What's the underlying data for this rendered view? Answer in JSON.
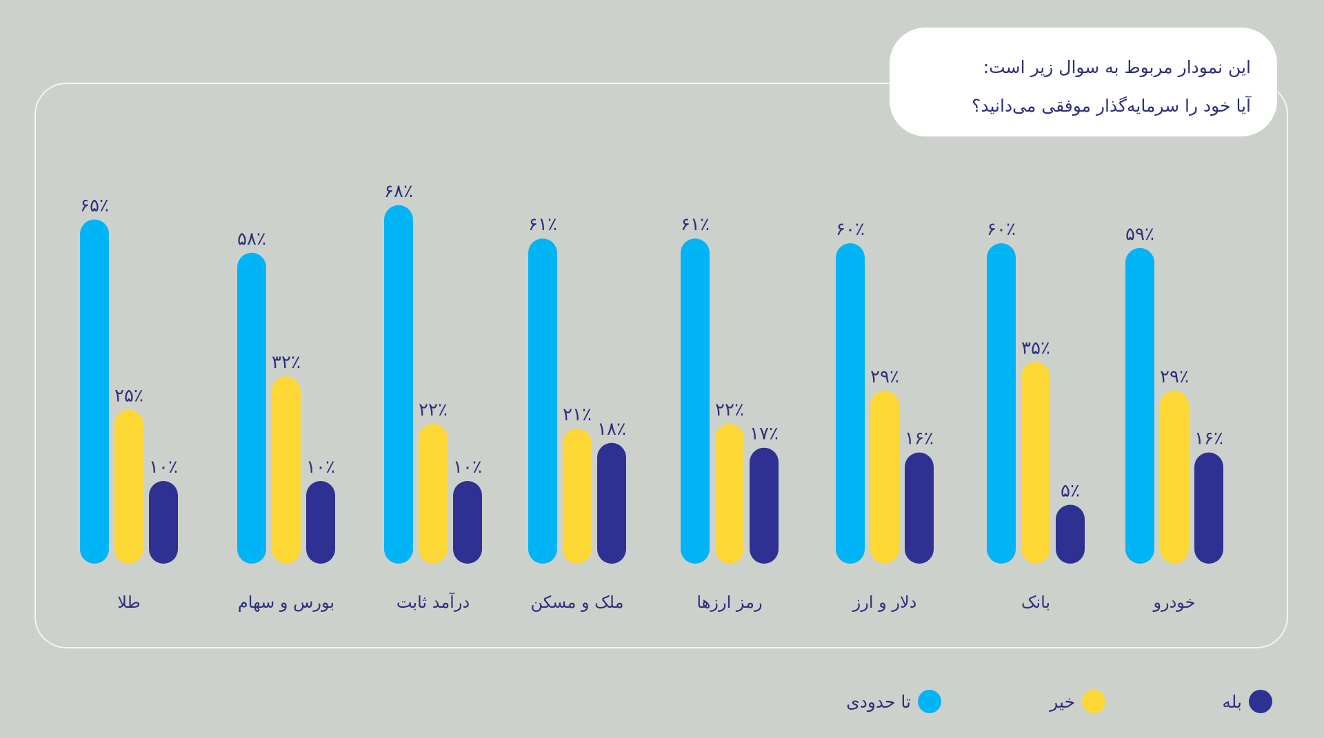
{
  "colors": {
    "background": "#cdd1cc",
    "tahododi": "#00b4f5",
    "kheir": "#fdd835",
    "baleh": "#2e3192",
    "text": "#2e2f7a"
  },
  "title": {
    "line1": "این نمودار مربوط به سوال زیر است:",
    "line2": "آیا خود را سرمایه‌گذار موفقی می‌دانید؟"
  },
  "chart_data": {
    "type": "bar",
    "title": "آیا خود را سرمایه‌گذار موفقی می‌دانید؟",
    "categories": [
      "طلا",
      "بورس و سهام",
      "درآمد ثابت",
      "ملک و مسکن",
      "رمز ارزها",
      "دلار و ارز",
      "بانک",
      "خودرو"
    ],
    "series": [
      {
        "name": "تا حدودی",
        "color": "#00b4f5",
        "values": [
          65,
          58,
          68,
          61,
          61,
          60,
          60,
          59
        ],
        "labels": [
          "۶۵٪",
          "۵۸٪",
          "۶۸٪",
          "۶۱٪",
          "۶۱٪",
          "۶۰٪",
          "۶۰٪",
          "۵۹٪"
        ]
      },
      {
        "name": "خیر",
        "color": "#fdd835",
        "values": [
          25,
          32,
          22,
          21,
          22,
          29,
          35,
          29
        ],
        "labels": [
          "۲۵٪",
          "۳۲٪",
          "۲۲٪",
          "۲۱٪",
          "۲۲٪",
          "۲۹٪",
          "۳۵٪",
          "۲۹٪"
        ]
      },
      {
        "name": "بله",
        "color": "#2e3192",
        "values": [
          10,
          10,
          10,
          18,
          17,
          16,
          5,
          16
        ],
        "labels": [
          "۱۰٪",
          "۱۰٪",
          "۱۰٪",
          "۱۸٪",
          "۱۷٪",
          "۱۶٪",
          "۵٪",
          "۱۶٪"
        ]
      }
    ],
    "unit": "%",
    "grid": false,
    "legend_position": "bottom-right"
  },
  "legend": [
    {
      "label": "بله"
    },
    {
      "label": "خیر"
    },
    {
      "label": "تا حدودی"
    }
  ]
}
